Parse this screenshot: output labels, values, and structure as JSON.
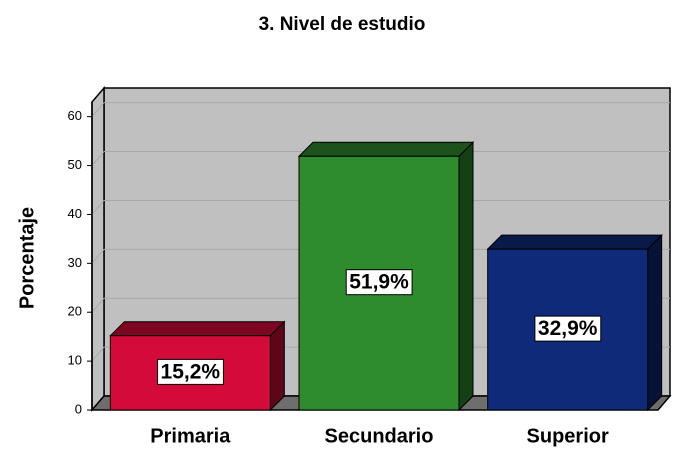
{
  "chart_data": {
    "type": "bar",
    "title": "3. Nivel de estudio",
    "ylabel": "Porcentaje",
    "categories": [
      "Primaria",
      "Secundario",
      "Superior"
    ],
    "values": [
      15.2,
      51.9,
      32.9
    ],
    "value_labels": [
      "15,2%",
      "51,9%",
      "32,9%"
    ],
    "colors": [
      "#d40a3a",
      "#2e8b2e",
      "#0f2a78"
    ],
    "ylim": [
      0,
      63
    ],
    "yticks": [
      0,
      10,
      20,
      30,
      40,
      50,
      60
    ],
    "grid": true
  }
}
